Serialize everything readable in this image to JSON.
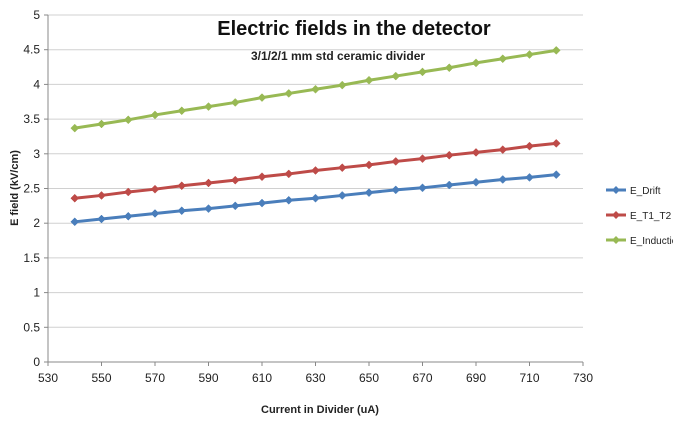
{
  "chart_data": {
    "type": "line",
    "title": "Electric fields in the detector",
    "subtitle": "3/1/2/1 mm std ceramic divider",
    "xlabel": "Current in Divider (uA)",
    "ylabel": "E field (kV/cm)",
    "xlim": [
      530,
      730
    ],
    "ylim": [
      0,
      5
    ],
    "x_ticks": [
      530,
      550,
      570,
      590,
      610,
      630,
      650,
      670,
      690,
      710,
      730
    ],
    "y_ticks": [
      0,
      0.5,
      1,
      1.5,
      2,
      2.5,
      3,
      3.5,
      4,
      4.5,
      5
    ],
    "grid": "horizontal",
    "legend_position": "right",
    "x": [
      540,
      550,
      560,
      570,
      580,
      590,
      600,
      610,
      620,
      630,
      640,
      650,
      660,
      670,
      680,
      690,
      700,
      710,
      720
    ],
    "series": [
      {
        "name": "E_Drift",
        "color": "#4a7ebb",
        "values": [
          2.02,
          2.06,
          2.1,
          2.14,
          2.18,
          2.21,
          2.25,
          2.29,
          2.33,
          2.36,
          2.4,
          2.44,
          2.48,
          2.51,
          2.55,
          2.59,
          2.63,
          2.66,
          2.7
        ]
      },
      {
        "name": "E_T1_T2",
        "color": "#be4b48",
        "values": [
          2.36,
          2.4,
          2.45,
          2.49,
          2.54,
          2.58,
          2.62,
          2.67,
          2.71,
          2.76,
          2.8,
          2.84,
          2.89,
          2.93,
          2.98,
          3.02,
          3.06,
          3.11,
          3.15
        ]
      },
      {
        "name": "E_Induction",
        "color": "#98b954",
        "values": [
          3.37,
          3.43,
          3.49,
          3.56,
          3.62,
          3.68,
          3.74,
          3.81,
          3.87,
          3.93,
          3.99,
          4.06,
          4.12,
          4.18,
          4.24,
          4.31,
          4.37,
          4.43,
          4.49
        ]
      }
    ]
  }
}
